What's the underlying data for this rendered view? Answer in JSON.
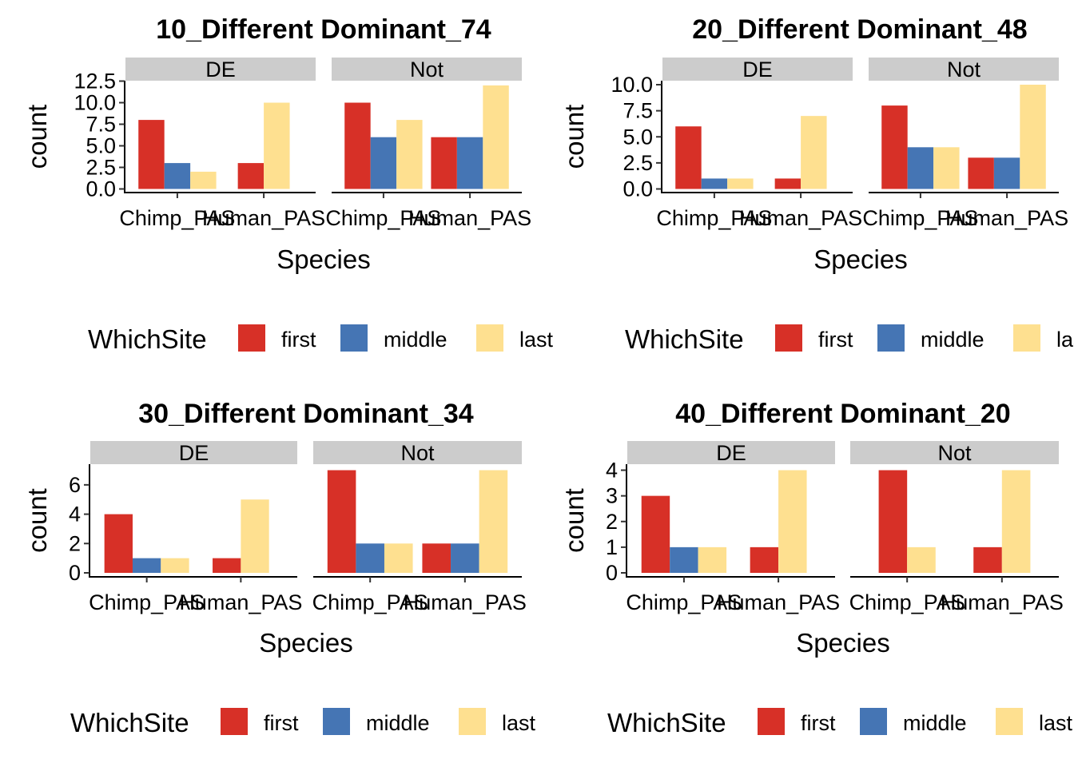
{
  "palette": {
    "first": "#D73027",
    "middle": "#4575B4",
    "last": "#FEE090"
  },
  "chart_data": [
    {
      "type": "bar",
      "title": "10_Different Dominant_74",
      "xlabel": "Species",
      "ylabel": "count",
      "categories": [
        "Chimp_PAS",
        "Human_PAS"
      ],
      "ylim": [
        0,
        12.5
      ],
      "yticks": [
        "0.0",
        "2.5",
        "5.0",
        "7.5",
        "10.0",
        "12.5"
      ],
      "legend": {
        "title": "WhichSite",
        "entries": [
          "first",
          "middle",
          "last"
        ],
        "position": "bottom"
      },
      "facets": [
        {
          "label": "DE",
          "series": [
            {
              "name": "first",
              "values": [
                8,
                3
              ]
            },
            {
              "name": "middle",
              "values": [
                3,
                0
              ]
            },
            {
              "name": "last",
              "values": [
                2,
                10
              ]
            }
          ]
        },
        {
          "label": "Not",
          "series": [
            {
              "name": "first",
              "values": [
                10,
                6
              ]
            },
            {
              "name": "middle",
              "values": [
                6,
                6
              ]
            },
            {
              "name": "last",
              "values": [
                8,
                12
              ]
            }
          ]
        }
      ]
    },
    {
      "type": "bar",
      "title": "20_Different Dominant_48",
      "xlabel": "Species",
      "ylabel": "count",
      "categories": [
        "Chimp_PAS",
        "Human_PAS"
      ],
      "ylim": [
        0,
        10
      ],
      "yticks": [
        "0.0",
        "2.5",
        "5.0",
        "7.5",
        "10.0"
      ],
      "legend": {
        "title": "WhichSite",
        "entries": [
          "first",
          "middle",
          "last"
        ],
        "position": "bottom"
      },
      "facets": [
        {
          "label": "DE",
          "series": [
            {
              "name": "first",
              "values": [
                6,
                1
              ]
            },
            {
              "name": "middle",
              "values": [
                1,
                0
              ]
            },
            {
              "name": "last",
              "values": [
                1,
                7
              ]
            }
          ]
        },
        {
          "label": "Not",
          "series": [
            {
              "name": "first",
              "values": [
                8,
                3
              ]
            },
            {
              "name": "middle",
              "values": [
                4,
                3
              ]
            },
            {
              "name": "last",
              "values": [
                4,
                10
              ]
            }
          ]
        }
      ]
    },
    {
      "type": "bar",
      "title": "30_Different Dominant_34",
      "xlabel": "Species",
      "ylabel": "count",
      "categories": [
        "Chimp_PAS",
        "Human_PAS"
      ],
      "ylim": [
        0,
        7
      ],
      "yticks": [
        "0",
        "2",
        "4",
        "6"
      ],
      "legend": {
        "title": "WhichSite",
        "entries": [
          "first",
          "middle",
          "last"
        ],
        "position": "bottom"
      },
      "facets": [
        {
          "label": "DE",
          "series": [
            {
              "name": "first",
              "values": [
                4,
                1
              ]
            },
            {
              "name": "middle",
              "values": [
                1,
                0
              ]
            },
            {
              "name": "last",
              "values": [
                1,
                5
              ]
            }
          ]
        },
        {
          "label": "Not",
          "series": [
            {
              "name": "first",
              "values": [
                7,
                2
              ]
            },
            {
              "name": "middle",
              "values": [
                2,
                2
              ]
            },
            {
              "name": "last",
              "values": [
                2,
                7
              ]
            }
          ]
        }
      ]
    },
    {
      "type": "bar",
      "title": "40_Different Dominant_20",
      "xlabel": "Species",
      "ylabel": "count",
      "categories": [
        "Chimp_PAS",
        "Human_PAS"
      ],
      "ylim": [
        0,
        4
      ],
      "yticks": [
        "0",
        "1",
        "2",
        "3",
        "4"
      ],
      "legend": {
        "title": "WhichSite",
        "entries": [
          "first",
          "middle",
          "last"
        ],
        "position": "bottom"
      },
      "facets": [
        {
          "label": "DE",
          "series": [
            {
              "name": "first",
              "values": [
                3,
                1
              ]
            },
            {
              "name": "middle",
              "values": [
                1,
                0
              ]
            },
            {
              "name": "last",
              "values": [
                1,
                4
              ]
            }
          ]
        },
        {
          "label": "Not",
          "series": [
            {
              "name": "first",
              "values": [
                4,
                1
              ]
            },
            {
              "name": "middle",
              "values": [
                0,
                0
              ]
            },
            {
              "name": "last",
              "values": [
                1,
                4
              ]
            }
          ]
        }
      ]
    }
  ]
}
